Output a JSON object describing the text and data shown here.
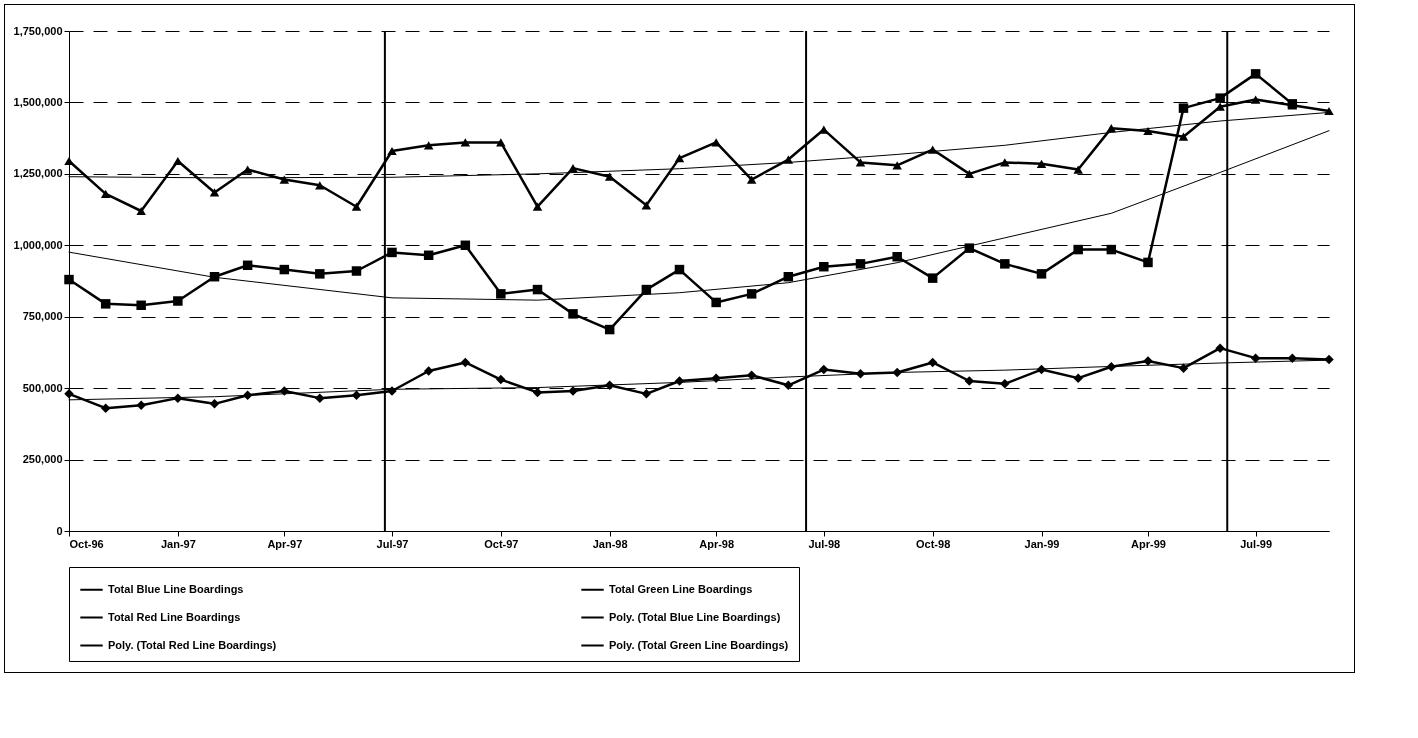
{
  "chart_data": {
    "type": "line",
    "x": [
      "1996-10",
      "1996-11",
      "1996-12",
      "1997-01",
      "1997-02",
      "1997-03",
      "1997-04",
      "1997-05",
      "1997-06",
      "1997-07",
      "1997-08",
      "1997-09",
      "1997-10",
      "1997-11",
      "1997-12",
      "1998-01",
      "1998-02",
      "1998-03",
      "1998-04",
      "1998-05",
      "1998-06",
      "1998-07",
      "1998-08",
      "1998-09",
      "1998-10",
      "1998-11",
      "1998-12",
      "1999-01",
      "1999-02",
      "1999-03",
      "1999-04",
      "1999-05",
      "1999-06",
      "1999-07",
      "1999-08",
      "1999-09"
    ],
    "series": [
      {
        "name": "Total Blue Line Boardings",
        "color": "#000000",
        "marker": "triangle",
        "values": [
          1295000,
          1180000,
          1120000,
          1295000,
          1185000,
          1265000,
          1230000,
          1210000,
          1135000,
          1330000,
          1350000,
          1360000,
          1360000,
          1135000,
          1270000,
          1240000,
          1140000,
          1305000,
          1360000,
          1230000,
          1300000,
          1405000,
          1290000,
          1280000,
          1335000,
          1250000,
          1290000,
          1285000,
          1265000,
          1410000,
          1400000,
          1380000,
          1485000,
          1510000,
          1490000,
          1470000
        ]
      },
      {
        "name": "Total Green Line Boardings",
        "color": "#000000",
        "marker": "diamond",
        "values": [
          480000,
          430000,
          440000,
          465000,
          445000,
          475000,
          490000,
          465000,
          475000,
          490000,
          560000,
          590000,
          530000,
          485000,
          490000,
          510000,
          480000,
          525000,
          535000,
          545000,
          510000,
          565000,
          550000,
          555000,
          590000,
          525000,
          515000,
          565000,
          535000,
          575000,
          595000,
          570000,
          640000,
          605000,
          605000,
          600000
        ]
      },
      {
        "name": "Total Red Line Boardings",
        "color": "#000000",
        "marker": "square",
        "values": [
          880000,
          795000,
          790000,
          805000,
          890000,
          930000,
          915000,
          900000,
          910000,
          975000,
          965000,
          1000000,
          830000,
          845000,
          760000,
          705000,
          845000,
          915000,
          800000,
          830000,
          890000,
          925000,
          935000,
          960000,
          885000,
          990000,
          935000,
          900000,
          985000,
          985000,
          940000,
          1480000,
          1515000,
          1600000,
          1495000,
          null
        ]
      },
      {
        "name": "Poly. (Total Blue Line Boardings)",
        "color": "#000000",
        "type": "line",
        "marker": "none",
        "x": [
          "1996-10",
          "1997-02",
          "1997-07",
          "1997-11",
          "1998-03",
          "1998-06",
          "1998-09",
          "1998-12",
          "1999-03",
          "1999-06",
          "1999-09"
        ],
        "values": [
          1240000,
          1236000,
          1238000,
          1250000,
          1268000,
          1290000,
          1318000,
          1350000,
          1395000,
          1435000,
          1465000
        ]
      },
      {
        "name": "Poly. (Total Red Line Boardings)",
        "color": "#000000",
        "type": "line",
        "marker": "none",
        "x": [
          "1996-10",
          "1997-02",
          "1997-07",
          "1997-11",
          "1998-03",
          "1998-06",
          "1998-09",
          "1998-12",
          "1999-03",
          "1999-06",
          "1999-09"
        ],
        "values": [
          976000,
          888000,
          816000,
          808000,
          834000,
          869000,
          939000,
          1026000,
          1112000,
          1255000,
          1401000
        ]
      },
      {
        "name": "Poly. (Total Green Line Boardings)",
        "color": "#000000",
        "type": "line",
        "marker": "none",
        "x": [
          "1996-10",
          "1997-02",
          "1997-07",
          "1997-11",
          "1998-03",
          "1998-06",
          "1998-09",
          "1998-12",
          "1999-03",
          "1999-06",
          "1999-09"
        ],
        "values": [
          459000,
          470000,
          496000,
          502000,
          520000,
          539000,
          555000,
          563000,
          576000,
          588000,
          598000
        ]
      }
    ],
    "xlim": [
      "1996-10",
      "1999-09"
    ],
    "xticks": [
      {
        "value": "1996-10",
        "label": "Oct-96"
      },
      {
        "value": "1997-01",
        "label": "Jan-97"
      },
      {
        "value": "1997-04",
        "label": "Apr-97"
      },
      {
        "value": "1997-07",
        "label": "Jul-97"
      },
      {
        "value": "1997-10",
        "label": "Oct-97"
      },
      {
        "value": "1998-01",
        "label": "Jan-98"
      },
      {
        "value": "1998-04",
        "label": "Apr-98"
      },
      {
        "value": "1998-07",
        "label": "Jul-98"
      },
      {
        "value": "1998-10",
        "label": "Oct-98"
      },
      {
        "value": "1999-01",
        "label": "Jan-99"
      },
      {
        "value": "1999-04",
        "label": "Apr-99"
      },
      {
        "value": "1999-07",
        "label": "Jul-99"
      }
    ],
    "ylim": [
      0,
      1750000
    ],
    "yticks": [
      0,
      {
        "value": 250000,
        "label": "250,000"
      },
      {
        "value": 500000,
        "label": "500,000"
      },
      {
        "value": 750000,
        "label": "750,000"
      },
      {
        "value": 1000000,
        "label": "1,000,000"
      },
      {
        "value": 1250000,
        "label": "1,250,000"
      },
      {
        "value": 1500000,
        "label": "1,500,000"
      },
      {
        "value": 1750000,
        "label": "1,750,000"
      }
    ],
    "ref_lines": [
      {
        "axis": "x",
        "value": "1997-06-25",
        "color": "#000000"
      },
      {
        "axis": "x",
        "value": "1998-06-16",
        "color": "#000000"
      },
      {
        "axis": "x",
        "value": "1999-06-07",
        "color": "#000000"
      }
    ],
    "grid": "y",
    "legend": "bottom"
  }
}
